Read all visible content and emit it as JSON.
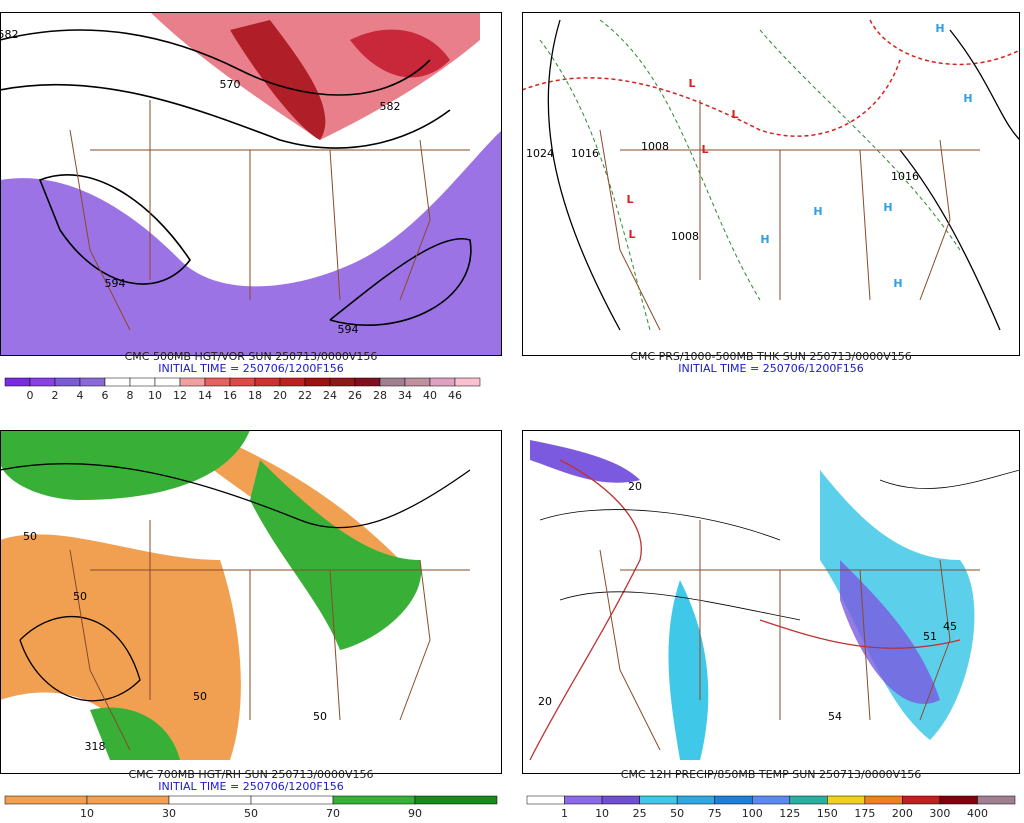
{
  "panels": [
    {
      "title": "CMC 500MB HGT/VOR SUN 250713/0000V156",
      "initial": "INITIAL TIME = 250706/1200F156",
      "labels": [
        "582",
        "570",
        "582",
        "594",
        "594"
      ],
      "scale": [
        "0",
        "2",
        "4",
        "6",
        "8",
        "10",
        "12",
        "14",
        "16",
        "18",
        "20",
        "22",
        "24",
        "26",
        "28",
        "34",
        "40",
        "46"
      ]
    },
    {
      "title": "CMC PRS/1000-500MB THK SUN 250713/0000V156",
      "initial": "INITIAL TIME = 250706/1200F156",
      "labels": [
        "1024",
        "1016",
        "1008",
        "1008",
        "1016",
        "L",
        "L",
        "L",
        "L",
        "L",
        "H",
        "H",
        "H",
        "H",
        "H",
        "H"
      ]
    },
    {
      "title": "CMC 700MB HGT/RH SUN 250713/0000V156",
      "initial": "INITIAL TIME = 250706/1200F156",
      "labels": [
        "50",
        "50",
        "50",
        "50",
        "318"
      ],
      "scale": [
        "10",
        "30",
        "50",
        "70",
        "90"
      ]
    },
    {
      "title": "CMC 12H PRECIP/850MB TEMP SUN 250713/0000V156",
      "labels": [
        "20",
        "20",
        "54",
        "51",
        "45"
      ],
      "scale": [
        "1",
        "10",
        "25",
        "50",
        "75",
        "100",
        "125",
        "150",
        "175",
        "200",
        "300",
        "400"
      ]
    }
  ]
}
